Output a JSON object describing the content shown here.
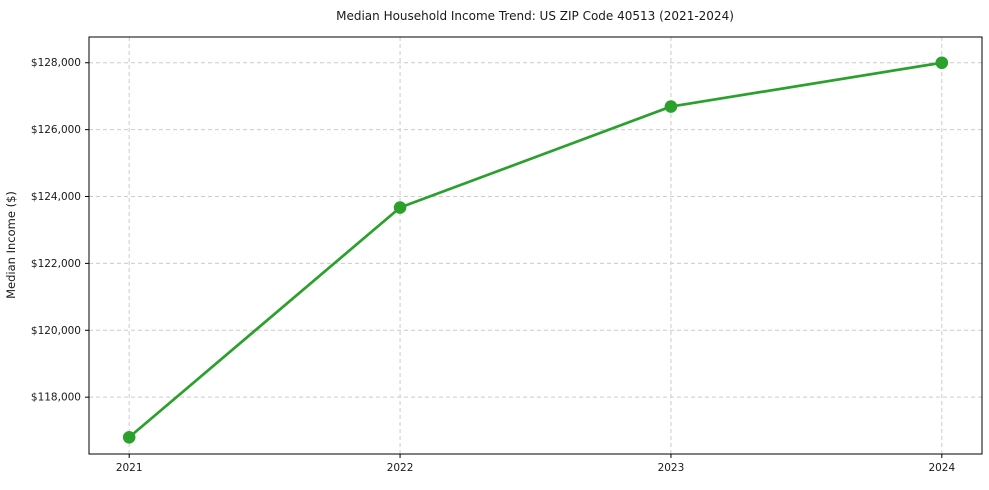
{
  "title": "Median Household Income Trend: US ZIP Code 40513 (2021-2024)",
  "ylabel": "Median Income ($)",
  "xlabel": "",
  "chart_data": {
    "type": "line",
    "series_name": "Median Household Income",
    "x": [
      2021,
      2022,
      2023,
      2024
    ],
    "x_tick_labels": [
      "2021",
      "2022",
      "2023",
      "2024"
    ],
    "values": [
      116800,
      123670,
      126690,
      128000
    ],
    "yticks": [
      118000,
      120000,
      122000,
      124000,
      126000,
      128000
    ],
    "y_tick_labels": [
      "$118,000",
      "$120,000",
      "$122,000",
      "$124,000",
      "$126,000",
      "$128,000"
    ],
    "ylim": [
      116300,
      128770
    ],
    "title": "Median Household Income Trend: US ZIP Code 40513 (2021-2024)",
    "xlabel": "",
    "ylabel": "Median Income ($)",
    "grid": true,
    "grid_style": "dashed",
    "legend_position": "none",
    "line_color": "#2ca02c",
    "marker": "circle",
    "marker_color": "#2ca02c",
    "grid_color": "#cccccc",
    "frame_color": "#000000"
  }
}
